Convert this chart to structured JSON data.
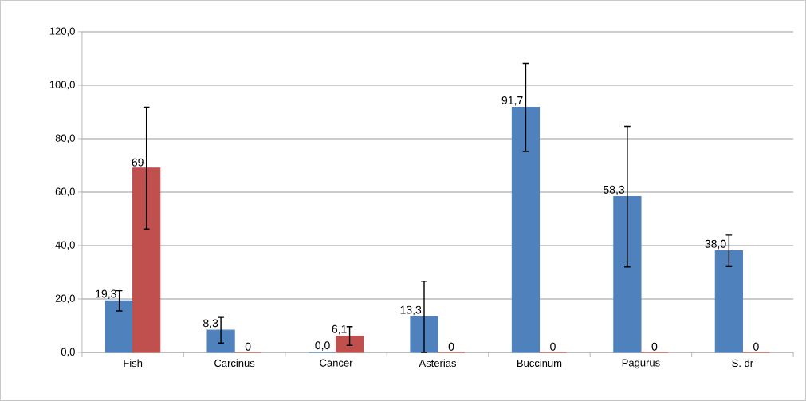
{
  "chart_data": {
    "type": "bar",
    "categories": [
      "Fish",
      "Carcinus",
      "Cancer",
      "Asterias",
      "Buccinum",
      "Pagurus",
      "S. dr"
    ],
    "series": [
      {
        "color": "#4f81bd",
        "values": [
          19.3,
          8.3,
          0.0,
          13.3,
          91.7,
          58.3,
          38.0
        ],
        "errors": [
          3.8,
          4.8,
          null,
          13.3,
          16.5,
          26.3,
          5.9
        ],
        "value_labels": [
          "19,3",
          "8,3",
          "0,0",
          "13,3",
          "91,7",
          "58,3",
          "38,0"
        ]
      },
      {
        "color": "#c0504d",
        "values": [
          69,
          0,
          6.1,
          0,
          0,
          0,
          0
        ],
        "errors": [
          22.8,
          null,
          3.5,
          null,
          null,
          null,
          null
        ],
        "value_labels": [
          "69",
          "0",
          "6,1",
          "0",
          "0",
          "0",
          "0"
        ]
      }
    ],
    "ylim": [
      0,
      120
    ],
    "yticks": [
      {
        "value": 0,
        "label": "0,0"
      },
      {
        "value": 20,
        "label": "20,0"
      },
      {
        "value": 40,
        "label": "40,0"
      },
      {
        "value": 60,
        "label": "60,0"
      },
      {
        "value": 80,
        "label": "80,0"
      },
      {
        "value": 100,
        "label": "100,0"
      },
      {
        "value": 120,
        "label": "120,0"
      }
    ],
    "grid": "y"
  }
}
